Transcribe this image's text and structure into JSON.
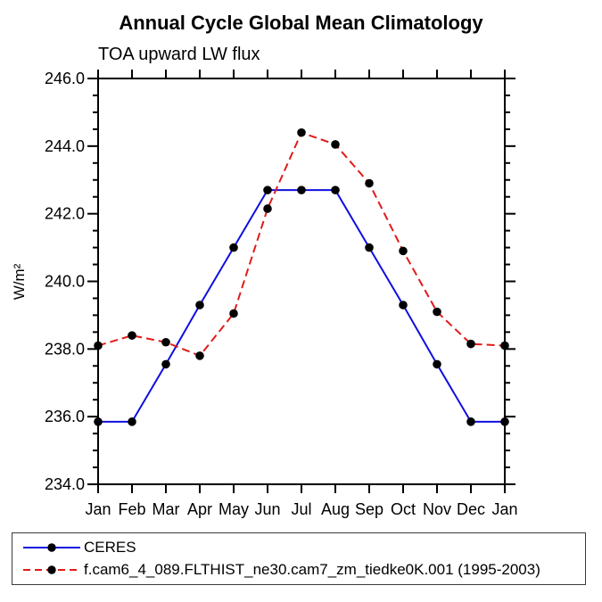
{
  "chart_data": {
    "type": "line",
    "title": "Annual Cycle Global Mean Climatology",
    "subtitle": "TOA upward LW flux",
    "ylabel": "W/m²",
    "xlabel": "",
    "x_categories": [
      "Jan",
      "Feb",
      "Mar",
      "Apr",
      "May",
      "Jun",
      "Jul",
      "Aug",
      "Sep",
      "Oct",
      "Nov",
      "Dec",
      "Jan"
    ],
    "ylim": [
      234.0,
      246.0
    ],
    "y_major_step": 2.0,
    "y_minor_step": 0.5,
    "y_tick_labels": [
      "234.0",
      "236.0",
      "238.0",
      "240.0",
      "242.0",
      "244.0",
      "246.0"
    ],
    "grid": false,
    "legend_position": "bottom box, left-aligned",
    "axis_color": "#000000",
    "series": [
      {
        "name": "CERES",
        "color": "#0f0fdf",
        "line_style": "solid",
        "marker": "filled-circle",
        "marker_color": "#000000",
        "values": [
          235.85,
          235.85,
          237.55,
          239.3,
          241.0,
          242.7,
          242.7,
          242.7,
          241.0,
          239.3,
          237.55,
          235.85,
          235.85
        ]
      },
      {
        "name": "f.cam6_4_089.FLTHIST_ne30.cam7_zm_tiedke0K.001 (1995-2003)",
        "color": "#e11b1b",
        "line_style": "dashed",
        "marker": "filled-circle",
        "marker_color": "#000000",
        "values": [
          238.1,
          238.4,
          238.2,
          237.8,
          239.05,
          242.15,
          244.4,
          244.05,
          242.9,
          240.9,
          239.1,
          238.15,
          238.1
        ]
      }
    ]
  }
}
